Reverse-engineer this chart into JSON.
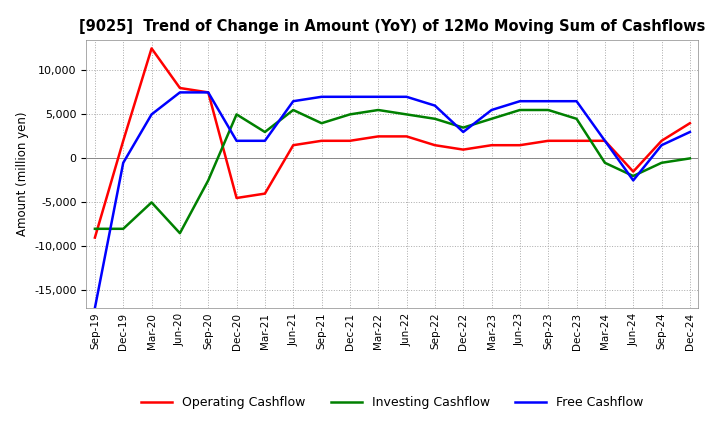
{
  "title": "[9025]  Trend of Change in Amount (YoY) of 12Mo Moving Sum of Cashflows",
  "ylabel": "Amount (million yen)",
  "background_color": "#ffffff",
  "grid_color": "#aaaaaa",
  "ylim": [
    -17000,
    13500
  ],
  "yticks": [
    -15000,
    -10000,
    -5000,
    0,
    5000,
    10000
  ],
  "x_labels": [
    "Sep-19",
    "Dec-19",
    "Mar-20",
    "Jun-20",
    "Sep-20",
    "Dec-20",
    "Mar-21",
    "Jun-21",
    "Sep-21",
    "Dec-21",
    "Mar-22",
    "Jun-22",
    "Sep-22",
    "Dec-22",
    "Mar-23",
    "Jun-23",
    "Sep-23",
    "Dec-23",
    "Mar-24",
    "Jun-24",
    "Sep-24",
    "Dec-24"
  ],
  "operating_cashflow": [
    -9000,
    2000,
    12500,
    8000,
    7500,
    -4500,
    -4000,
    1500,
    2000,
    2000,
    2500,
    2500,
    1500,
    1000,
    1500,
    1500,
    2000,
    2000,
    2000,
    -1500,
    2000,
    4000
  ],
  "investing_cashflow": [
    -8000,
    -8000,
    -5000,
    -8500,
    -2500,
    5000,
    3000,
    5500,
    4000,
    5000,
    5500,
    5000,
    4500,
    3500,
    4500,
    5500,
    5500,
    4500,
    -500,
    -2000,
    -500,
    0
  ],
  "free_cashflow": [
    -17000,
    -500,
    5000,
    7500,
    7500,
    2000,
    2000,
    6500,
    7000,
    7000,
    7000,
    7000,
    6000,
    3000,
    5500,
    6500,
    6500,
    6500,
    2000,
    -2500,
    1500,
    3000
  ],
  "operating_color": "#ff0000",
  "investing_color": "#008000",
  "free_color": "#0000ff",
  "line_width": 1.8
}
